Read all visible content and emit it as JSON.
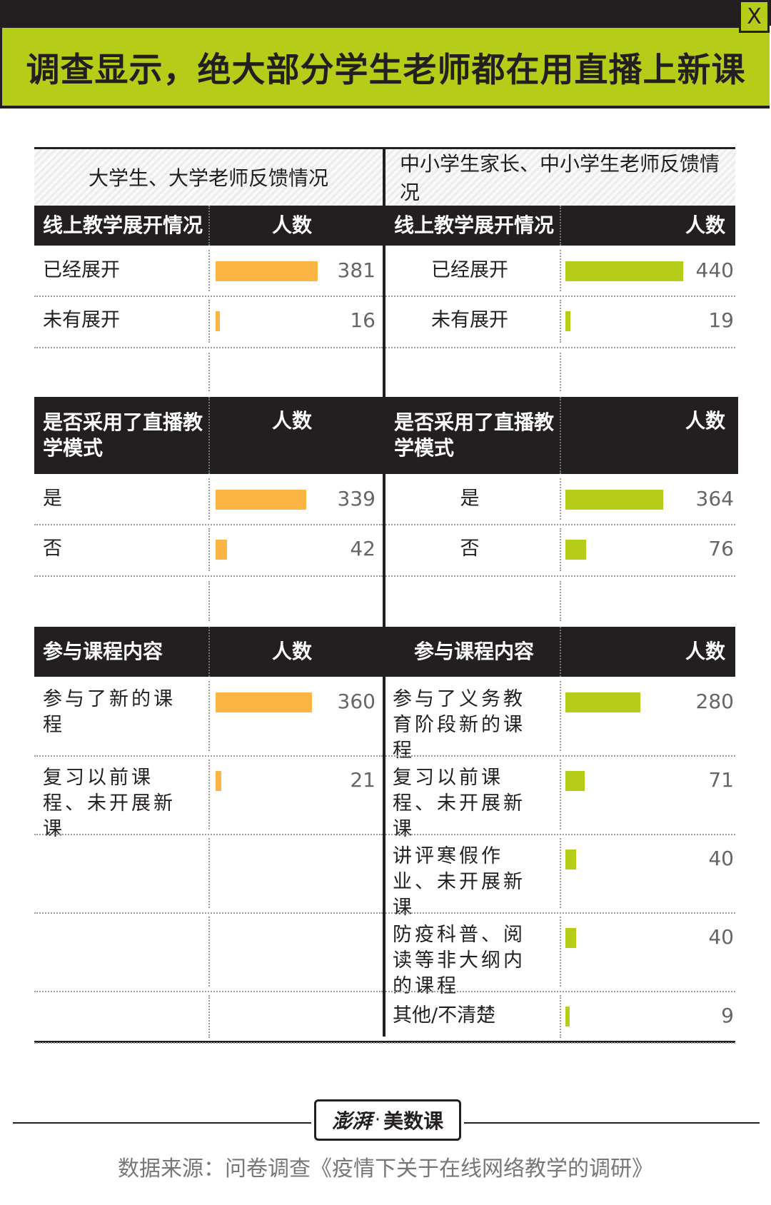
{
  "close_label": "X",
  "title": "调查显示，绝大部分学生老师都在用直播上新课",
  "colors": {
    "left": "#fdb644",
    "right": "#b5cc18",
    "dark": "#231f20",
    "title_bg": "#b5cc18"
  },
  "chart_data": {
    "type": "table",
    "panels": [
      {
        "heading": "大学生、大学老师反馈情况",
        "color": "#fdb644",
        "max": 440,
        "sections": [
          {
            "header": "线上教学展开情况",
            "count_header": "人数",
            "rows": [
              {
                "label": "已经展开",
                "value": 381
              },
              {
                "label": "未有展开",
                "value": 16
              }
            ]
          },
          {
            "header": "是否采用了直播教学模式",
            "count_header": "人数",
            "rows": [
              {
                "label": "是",
                "value": 339
              },
              {
                "label": "否",
                "value": 42
              }
            ]
          },
          {
            "header": "参与课程内容",
            "count_header": "人数",
            "rows": [
              {
                "label": "参与了新的课程",
                "value": 360
              },
              {
                "label": "复习以前课程、未开展新课",
                "value": 21
              }
            ]
          }
        ]
      },
      {
        "heading": "中小学生家长、中小学生老师反馈情况",
        "color": "#b5cc18",
        "max": 440,
        "sections": [
          {
            "header": "线上教学展开情况",
            "count_header": "人数",
            "rows": [
              {
                "label": "已经展开",
                "value": 440
              },
              {
                "label": "未有展开",
                "value": 19
              }
            ]
          },
          {
            "header": "是否采用了直播教学模式",
            "count_header": "人数",
            "rows": [
              {
                "label": "是",
                "value": 364
              },
              {
                "label": "否",
                "value": 76
              }
            ]
          },
          {
            "header": "参与课程内容",
            "count_header": "人数",
            "rows": [
              {
                "label": "参与了义务教育阶段新的课程",
                "value": 280
              },
              {
                "label": "复习以前课程、未开展新课",
                "value": 71
              },
              {
                "label": "讲评寒假作业、未开展新课",
                "value": 40
              },
              {
                "label": "防疫科普、阅读等非大纲内的课程",
                "value": 40
              },
              {
                "label": "其他/不清楚",
                "value": 9
              }
            ]
          }
        ]
      }
    ]
  },
  "footer": {
    "logo_script": "澎湃",
    "logo_dot": "·",
    "logo_text": "美数课",
    "source": "数据来源：问卷调查《疫情下关于在线网络教学的调研》"
  }
}
